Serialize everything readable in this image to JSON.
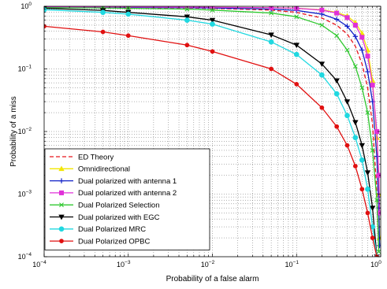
{
  "chart_data": {
    "type": "line",
    "title": "",
    "xlabel": "Probability of a false alarm",
    "ylabel": "Probability of a miss",
    "x_scale": "log",
    "y_scale": "log",
    "xlim": [
      0.0001,
      1
    ],
    "ylim": [
      0.0001,
      1
    ],
    "x_ticks": [
      {
        "base": "10",
        "exp": "−4",
        "value": 0.0001
      },
      {
        "base": "10",
        "exp": "−3",
        "value": 0.001
      },
      {
        "base": "10",
        "exp": "−2",
        "value": 0.01
      },
      {
        "base": "10",
        "exp": "−1",
        "value": 0.1
      },
      {
        "base": "10",
        "exp": "0",
        "value": 1
      }
    ],
    "y_ticks": [
      {
        "base": "10",
        "exp": "−4",
        "value": 0.0001
      },
      {
        "base": "10",
        "exp": "−3",
        "value": 0.001
      },
      {
        "base": "10",
        "exp": "−2",
        "value": 0.01
      },
      {
        "base": "10",
        "exp": "−1",
        "value": 0.1
      },
      {
        "base": "10",
        "exp": "0",
        "value": 1
      }
    ],
    "grid": true,
    "legend_position": "bottom-left",
    "series": [
      {
        "name": "ED Theory",
        "color": "#e8141c",
        "style": "dashed",
        "marker": "none",
        "points": [
          [
            0.0001,
            0.97
          ],
          [
            0.001,
            0.96
          ],
          [
            0.01,
            0.93
          ],
          [
            0.05,
            0.87
          ],
          [
            0.1,
            0.8
          ],
          [
            0.2,
            0.65
          ],
          [
            0.3,
            0.5
          ],
          [
            0.4,
            0.36
          ],
          [
            0.5,
            0.23
          ],
          [
            0.6,
            0.12
          ],
          [
            0.7,
            0.05
          ],
          [
            0.8,
            0.013
          ],
          [
            0.9,
            0.0011
          ],
          [
            0.95,
            0.00012
          ]
        ]
      },
      {
        "name": "Omnidirectional",
        "color": "#f2e600",
        "style": "solid",
        "marker": "triangle-up",
        "points": [
          [
            0.0001,
            0.98
          ],
          [
            0.0005,
            0.975
          ],
          [
            0.001,
            0.97
          ],
          [
            0.005,
            0.965
          ],
          [
            0.01,
            0.96
          ],
          [
            0.05,
            0.95
          ],
          [
            0.1,
            0.93
          ],
          [
            0.2,
            0.88
          ],
          [
            0.3,
            0.8
          ],
          [
            0.4,
            0.7
          ],
          [
            0.5,
            0.55
          ],
          [
            0.6,
            0.37
          ],
          [
            0.7,
            0.2
          ],
          [
            0.8,
            0.065
          ],
          [
            0.9,
            0.008
          ],
          [
            0.95,
            0.001
          ],
          [
            0.97,
            0.0002
          ]
        ]
      },
      {
        "name": "Dual polarized with antenna 1",
        "color": "#1020c8",
        "style": "solid",
        "marker": "plus",
        "points": [
          [
            0.0001,
            0.97
          ],
          [
            0.0005,
            0.965
          ],
          [
            0.001,
            0.96
          ],
          [
            0.005,
            0.95
          ],
          [
            0.01,
            0.94
          ],
          [
            0.05,
            0.9
          ],
          [
            0.1,
            0.86
          ],
          [
            0.2,
            0.75
          ],
          [
            0.3,
            0.62
          ],
          [
            0.4,
            0.48
          ],
          [
            0.5,
            0.33
          ],
          [
            0.6,
            0.2
          ],
          [
            0.7,
            0.09
          ],
          [
            0.8,
            0.03
          ],
          [
            0.9,
            0.004
          ],
          [
            0.95,
            0.0006
          ],
          [
            0.97,
            0.00015
          ]
        ]
      },
      {
        "name": "Dual polarized with antenna 2",
        "color": "#e030d8",
        "style": "solid",
        "marker": "square",
        "points": [
          [
            0.0001,
            0.98
          ],
          [
            0.0005,
            0.978
          ],
          [
            0.001,
            0.975
          ],
          [
            0.005,
            0.97
          ],
          [
            0.01,
            0.965
          ],
          [
            0.05,
            0.95
          ],
          [
            0.1,
            0.93
          ],
          [
            0.2,
            0.87
          ],
          [
            0.3,
            0.78
          ],
          [
            0.4,
            0.66
          ],
          [
            0.5,
            0.5
          ],
          [
            0.6,
            0.32
          ],
          [
            0.7,
            0.16
          ],
          [
            0.8,
            0.055
          ],
          [
            0.9,
            0.01
          ],
          [
            0.95,
            0.002
          ],
          [
            0.97,
            0.0005
          ]
        ]
      },
      {
        "name": "Dual Polarized Selection",
        "color": "#30c830",
        "style": "solid",
        "marker": "x",
        "points": [
          [
            0.0001,
            0.95
          ],
          [
            0.0005,
            0.94
          ],
          [
            0.001,
            0.93
          ],
          [
            0.005,
            0.9
          ],
          [
            0.01,
            0.87
          ],
          [
            0.05,
            0.78
          ],
          [
            0.1,
            0.68
          ],
          [
            0.2,
            0.5
          ],
          [
            0.3,
            0.34
          ],
          [
            0.4,
            0.2
          ],
          [
            0.5,
            0.11
          ],
          [
            0.6,
            0.05
          ],
          [
            0.7,
            0.02
          ],
          [
            0.8,
            0.005
          ],
          [
            0.9,
            0.0008
          ],
          [
            0.95,
            0.00012
          ]
        ]
      },
      {
        "name": "Dual polarized with EGC",
        "color": "#000000",
        "style": "solid",
        "marker": "triangle-down",
        "points": [
          [
            0.0001,
            0.93
          ],
          [
            0.0005,
            0.86
          ],
          [
            0.001,
            0.8
          ],
          [
            0.005,
            0.68
          ],
          [
            0.01,
            0.6
          ],
          [
            0.05,
            0.35
          ],
          [
            0.1,
            0.24
          ],
          [
            0.2,
            0.12
          ],
          [
            0.3,
            0.065
          ],
          [
            0.4,
            0.03
          ],
          [
            0.5,
            0.014
          ],
          [
            0.6,
            0.006
          ],
          [
            0.7,
            0.0022
          ],
          [
            0.8,
            0.0006
          ],
          [
            0.9,
            0.0001
          ]
        ]
      },
      {
        "name": "Dual Polarized MRC",
        "color": "#20d8e0",
        "style": "solid",
        "marker": "circle",
        "points": [
          [
            0.0001,
            0.88
          ],
          [
            0.0005,
            0.8
          ],
          [
            0.001,
            0.75
          ],
          [
            0.005,
            0.6
          ],
          [
            0.01,
            0.52
          ],
          [
            0.05,
            0.27
          ],
          [
            0.1,
            0.17
          ],
          [
            0.2,
            0.08
          ],
          [
            0.3,
            0.04
          ],
          [
            0.4,
            0.018
          ],
          [
            0.5,
            0.008
          ],
          [
            0.6,
            0.0035
          ],
          [
            0.7,
            0.0012
          ],
          [
            0.8,
            0.0003
          ],
          [
            0.9,
            0.0001
          ]
        ]
      },
      {
        "name": "Dual Polarized OPBC",
        "color": "#e01010",
        "style": "solid",
        "marker": "circle-filled",
        "points": [
          [
            0.0001,
            0.48
          ],
          [
            0.0005,
            0.39
          ],
          [
            0.001,
            0.34
          ],
          [
            0.005,
            0.24
          ],
          [
            0.01,
            0.19
          ],
          [
            0.05,
            0.1
          ],
          [
            0.1,
            0.057
          ],
          [
            0.2,
            0.024
          ],
          [
            0.3,
            0.012
          ],
          [
            0.4,
            0.006
          ],
          [
            0.5,
            0.0028
          ],
          [
            0.6,
            0.0012
          ],
          [
            0.7,
            0.0005
          ],
          [
            0.8,
            0.0002
          ],
          [
            0.9,
            0.0001
          ]
        ]
      }
    ]
  }
}
